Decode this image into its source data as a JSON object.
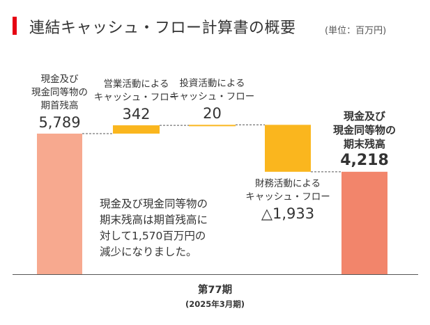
{
  "title": "連結キャッシュ・フロー計算書の概要",
  "unit": "(単位：百万円)",
  "note": [
    "現金及び現金同等物の",
    "期末残高は期首残高に",
    "対して1,570百万円の",
    "減少になりました。"
  ],
  "period": "第77期",
  "period_sub": "(2025年3月期)",
  "colors": {
    "accent": "#e60012",
    "balance_begin": "#f7a98f",
    "flow": "#fab61e",
    "balance_end": "#f2856b"
  },
  "chart_data": {
    "type": "bar",
    "subtype": "waterfall",
    "ylim": [
      0,
      7000
    ],
    "categories": [
      {
        "label": [
          "現金及び",
          "現金同等物の",
          "期首残高"
        ],
        "value_text": "5,789",
        "kind": "balance",
        "value": 5789,
        "emphasis": false
      },
      {
        "label": [
          "営業活動による",
          "キャッシュ・フロー"
        ],
        "value_text": "342",
        "kind": "flow",
        "value": 342,
        "emphasis": false
      },
      {
        "label": [
          "投資活動による",
          "キャッシュ・フロー"
        ],
        "value_text": "20",
        "kind": "flow",
        "value": 20,
        "emphasis": false
      },
      {
        "label": [
          "財務活動による",
          "キャッシュ・フロー"
        ],
        "value_text": "△1,933",
        "kind": "flow",
        "value": -1933,
        "emphasis": false
      },
      {
        "label": [
          "現金及び",
          "現金同等物の",
          "期末残高"
        ],
        "value_text": "4,218",
        "kind": "balance",
        "value": 4218,
        "emphasis": true
      }
    ]
  }
}
